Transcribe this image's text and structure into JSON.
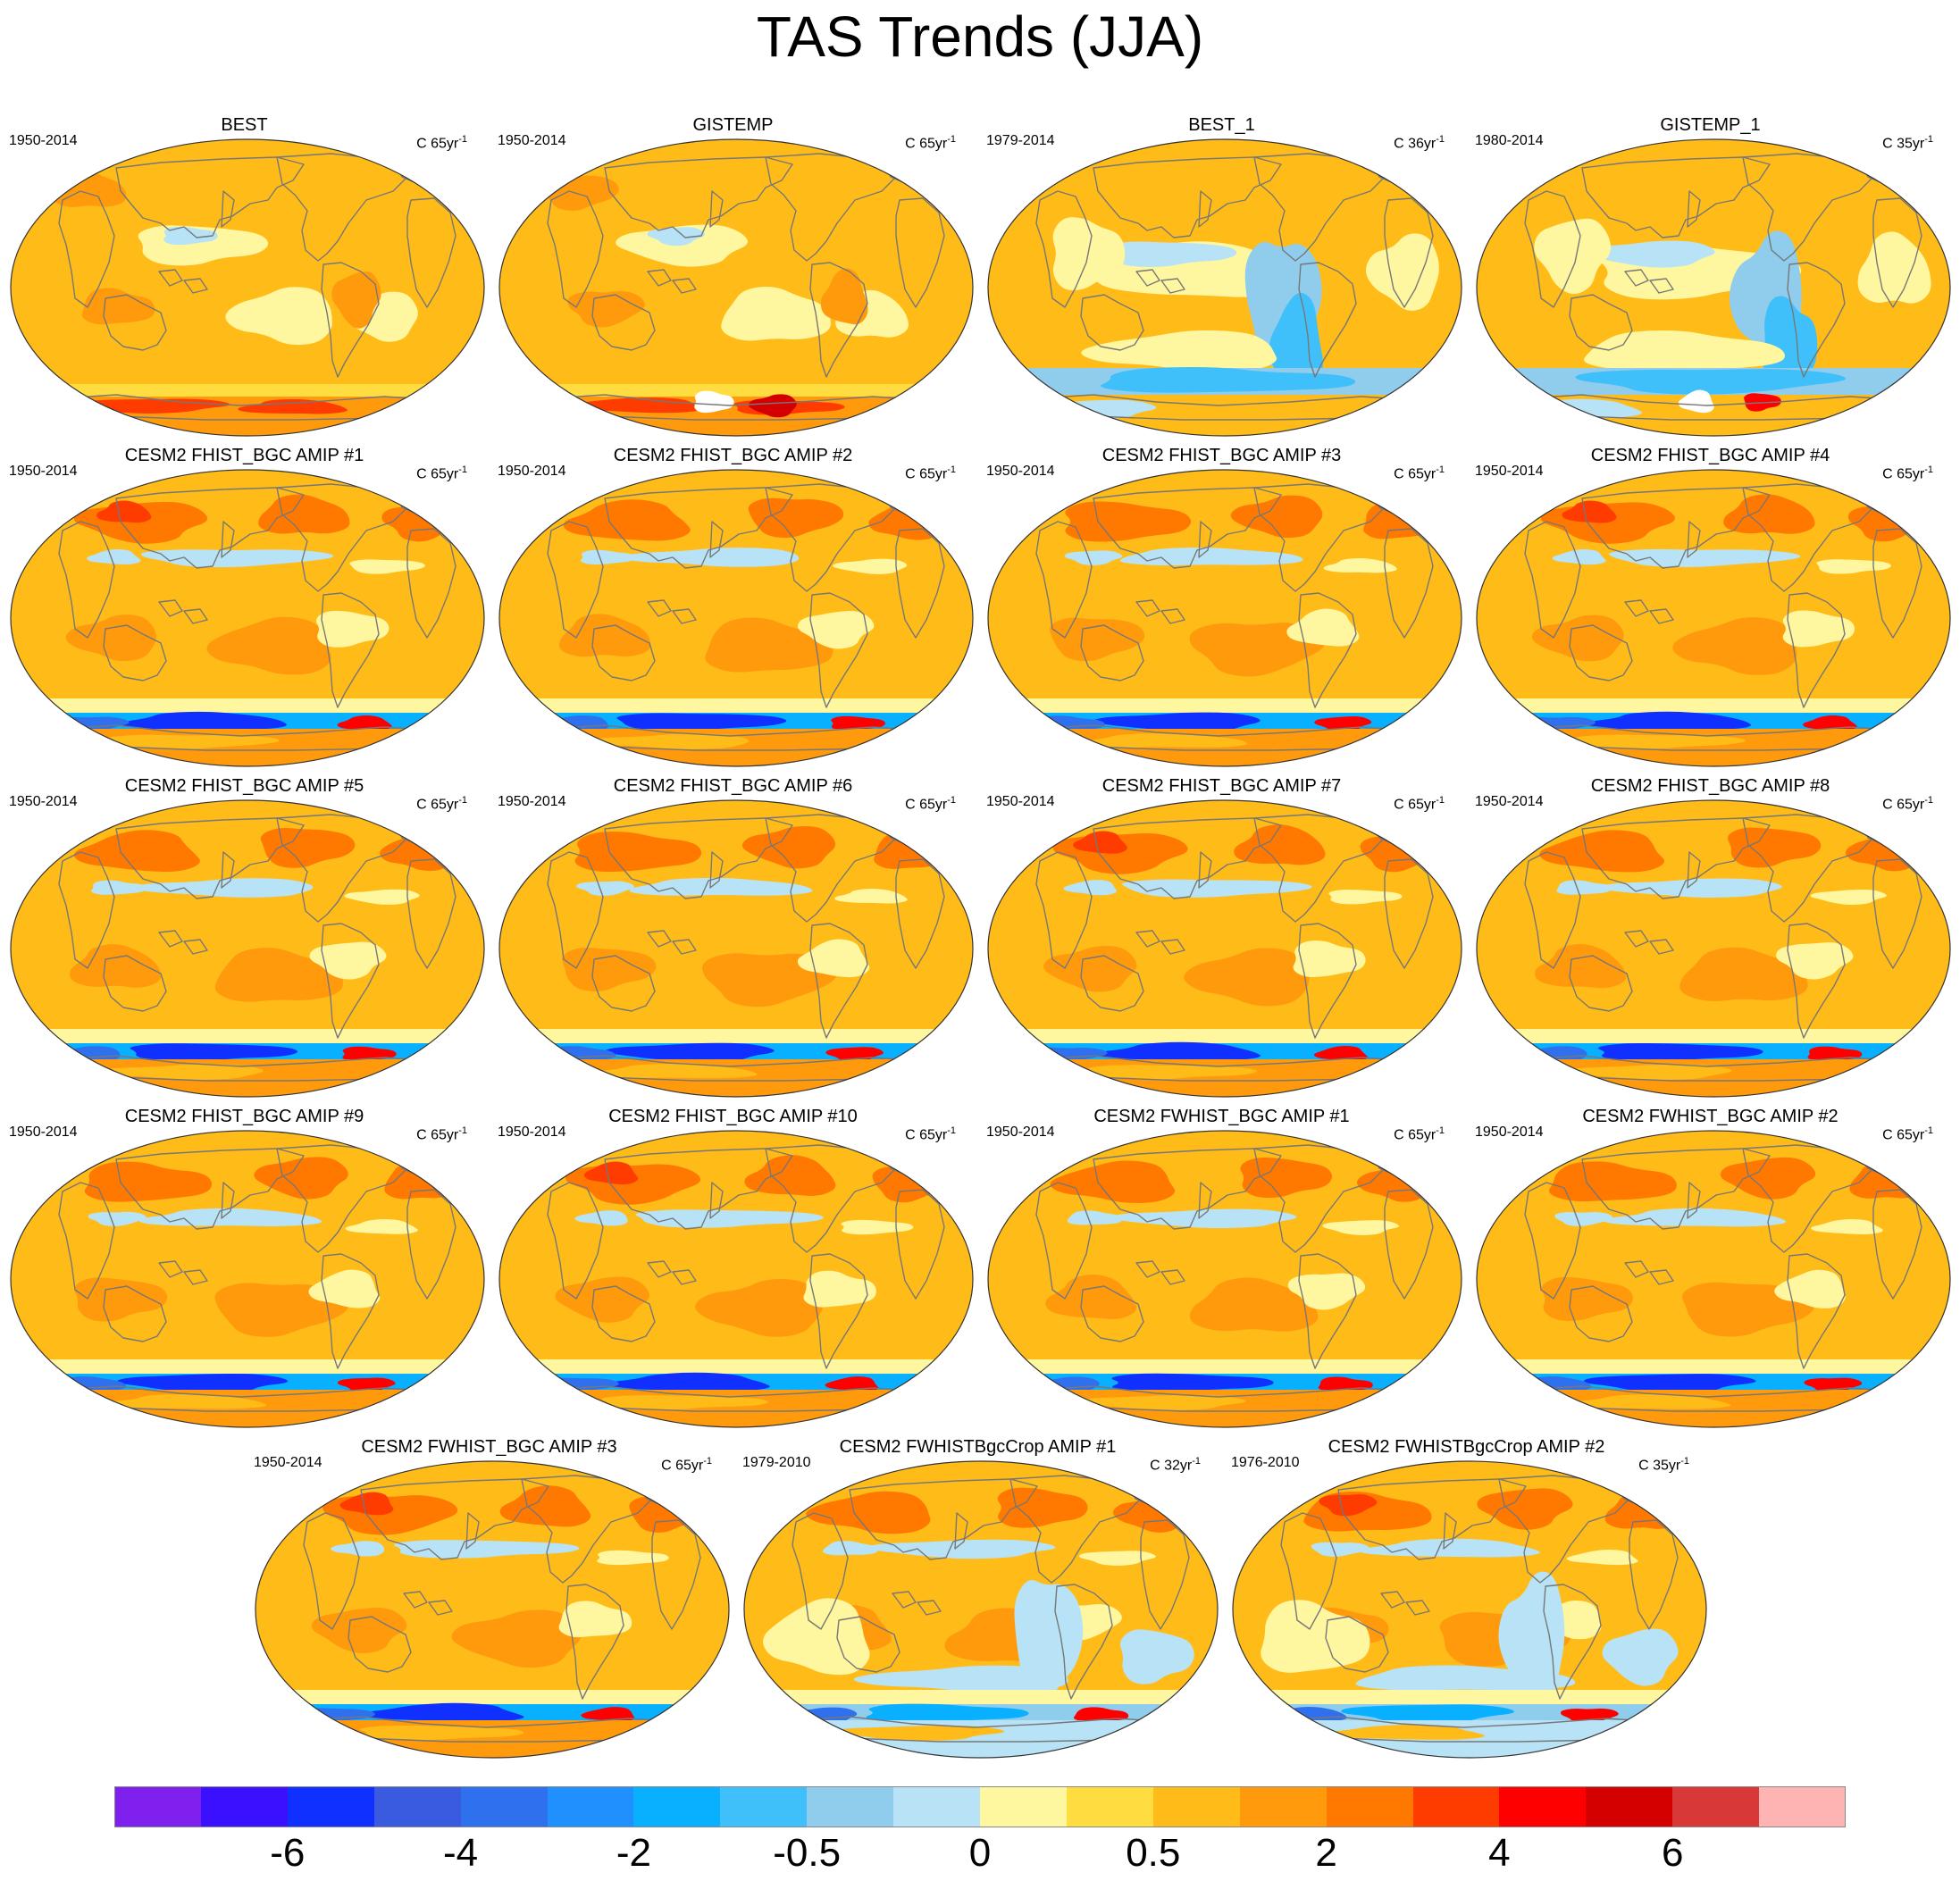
{
  "title": "TAS Trends (JJA)",
  "units_prefix": "C ",
  "units_suffix": "yr",
  "units_exp": "-1",
  "colors": {
    "land": "#777777",
    "levels": [
      "#8020ee",
      "#3a10ff",
      "#1030ff",
      "#3a5ae0",
      "#2e70ee",
      "#2090ff",
      "#08b0ff",
      "#40c0fa",
      "#90ccec",
      "#b8e2f6",
      "#fff6a0",
      "#ffdc40",
      "#ffbb18",
      "#ff9a0c",
      "#ff7800",
      "#ff3c00",
      "#ff0000",
      "#d40000",
      "#d83838",
      "#ffb4b4"
    ]
  },
  "colorbar": {
    "labels": [
      {
        "text": "-6",
        "boundary": 2
      },
      {
        "text": "-4",
        "boundary": 4
      },
      {
        "text": "-2",
        "boundary": 6
      },
      {
        "text": "-0.5",
        "boundary": 8
      },
      {
        "text": "0",
        "boundary": 10
      },
      {
        "text": "0.5",
        "boundary": 12
      },
      {
        "text": "2",
        "boundary": 14
      },
      {
        "text": "4",
        "boundary": 16
      },
      {
        "text": "6",
        "boundary": 18
      }
    ]
  },
  "panels": [
    {
      "name": "BEST",
      "years": "1950-2014",
      "yrs": "65",
      "style": "obs-long"
    },
    {
      "name": "GISTEMP",
      "years": "1950-2014",
      "yrs": "65",
      "style": "obs-long"
    },
    {
      "name": "BEST_1",
      "years": "1979-2014",
      "yrs": "36",
      "style": "obs-short"
    },
    {
      "name": "GISTEMP_1",
      "years": "1980-2014",
      "yrs": "35",
      "style": "obs-short"
    },
    {
      "name": "CESM2 FHIST_BGC AMIP #1",
      "years": "1950-2014",
      "yrs": "65",
      "style": "model"
    },
    {
      "name": "CESM2 FHIST_BGC AMIP #2",
      "years": "1950-2014",
      "yrs": "65",
      "style": "model"
    },
    {
      "name": "CESM2 FHIST_BGC AMIP #3",
      "years": "1950-2014",
      "yrs": "65",
      "style": "model"
    },
    {
      "name": "CESM2 FHIST_BGC AMIP #4",
      "years": "1950-2014",
      "yrs": "65",
      "style": "model"
    },
    {
      "name": "CESM2 FHIST_BGC AMIP #5",
      "years": "1950-2014",
      "yrs": "65",
      "style": "model"
    },
    {
      "name": "CESM2 FHIST_BGC AMIP #6",
      "years": "1950-2014",
      "yrs": "65",
      "style": "model"
    },
    {
      "name": "CESM2 FHIST_BGC AMIP #7",
      "years": "1950-2014",
      "yrs": "65",
      "style": "model"
    },
    {
      "name": "CESM2 FHIST_BGC AMIP #8",
      "years": "1950-2014",
      "yrs": "65",
      "style": "model"
    },
    {
      "name": "CESM2 FHIST_BGC AMIP #9",
      "years": "1950-2014",
      "yrs": "65",
      "style": "model"
    },
    {
      "name": "CESM2 FHIST_BGC AMIP #10",
      "years": "1950-2014",
      "yrs": "65",
      "style": "model"
    },
    {
      "name": "CESM2 FWHIST_BGC AMIP #1",
      "years": "1950-2014",
      "yrs": "65",
      "style": "model"
    },
    {
      "name": "CESM2 FWHIST_BGC AMIP #2",
      "years": "1950-2014",
      "yrs": "65",
      "style": "model"
    },
    {
      "name": "CESM2 FWHIST_BGC AMIP #3",
      "years": "1950-2014",
      "yrs": "65",
      "style": "model"
    },
    {
      "name": "CESM2 FWHISTBgcCrop AMIP #1",
      "years": "1979-2010",
      "yrs": "32",
      "style": "model-short"
    },
    {
      "name": "CESM2 FWHISTBgcCrop AMIP #2",
      "years": "1976-2010",
      "yrs": "35",
      "style": "model-short"
    }
  ]
}
